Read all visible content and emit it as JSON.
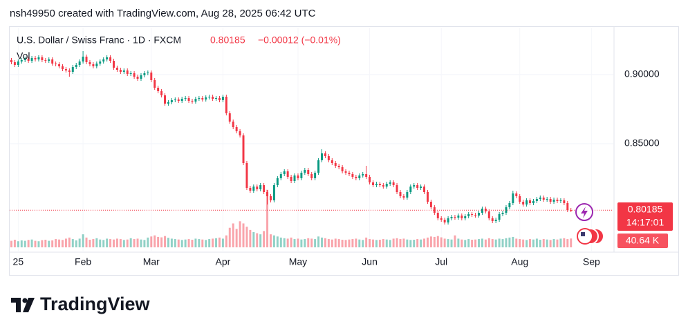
{
  "header": "nsh49950 created with TradingView.com, Aug 28, 2025 06:42 UTC",
  "chart_data": {
    "type": "candlestick",
    "title": "U.S. Dollar / Swiss Franc · 1D · FXCM",
    "change": "−0.00012 (−0.01%)",
    "volume_title": "Vol",
    "countdown": "14:17:01",
    "last_volume_label": "40.64 K",
    "up_color": "#089981",
    "down_color": "#f23645",
    "ylim": [
      0.7715,
      0.934
    ],
    "yticks": [
      {
        "value": 0.85,
        "label": "0.85000"
      },
      {
        "value": 0.9,
        "label": "0.90000"
      }
    ],
    "xlim": [
      -0.5,
      175
    ],
    "xticks": [
      {
        "value": 2,
        "label": "25"
      },
      {
        "value": 21,
        "label": "Feb"
      },
      {
        "value": 41,
        "label": "Mar"
      },
      {
        "value": 62,
        "label": "Apr"
      },
      {
        "value": 84,
        "label": "May"
      },
      {
        "value": 105,
        "label": "Jun"
      },
      {
        "value": 126,
        "label": "Jul"
      },
      {
        "value": 149,
        "label": "Aug"
      },
      {
        "value": 170,
        "label": "Sep"
      }
    ],
    "vlim": [
      0,
      350
    ],
    "grid": true,
    "open": [
      0.9105,
      0.909,
      0.907,
      0.9095,
      0.9105,
      0.9115,
      0.91,
      0.912,
      0.911,
      0.9125,
      0.9105,
      0.91,
      0.911,
      0.908,
      0.9075,
      0.906,
      0.904,
      0.903,
      0.902,
      0.9055,
      0.907,
      0.9095,
      0.913,
      0.909,
      0.9075,
      0.906,
      0.908,
      0.9095,
      0.911,
      0.9125,
      0.91,
      0.905,
      0.9035,
      0.902,
      0.903,
      0.9005,
      0.901,
      0.8985,
      0.897,
      0.8995,
      0.901,
      0.9015,
      0.896,
      0.8905,
      0.888,
      0.885,
      0.879,
      0.88,
      0.8815,
      0.882,
      0.881,
      0.8825,
      0.883,
      0.881,
      0.8805,
      0.8825,
      0.883,
      0.882,
      0.8835,
      0.884,
      0.8825,
      0.883,
      0.8815,
      0.884,
      0.872,
      0.866,
      0.862,
      0.859,
      0.856,
      0.836,
      0.818,
      0.816,
      0.819,
      0.817,
      0.82,
      0.815,
      0.812,
      0.809,
      0.82,
      0.825,
      0.828,
      0.83,
      0.826,
      0.823,
      0.827,
      0.825,
      0.829,
      0.831,
      0.828,
      0.825,
      0.829,
      0.838,
      0.843,
      0.841,
      0.838,
      0.836,
      0.834,
      0.833,
      0.83,
      0.829,
      0.828,
      0.826,
      0.825,
      0.827,
      0.828,
      0.826,
      0.822,
      0.82,
      0.821,
      0.82,
      0.819,
      0.821,
      0.822,
      0.82,
      0.815,
      0.812,
      0.811,
      0.815,
      0.819,
      0.82,
      0.818,
      0.819,
      0.815,
      0.808,
      0.804,
      0.8,
      0.796,
      0.795,
      0.793,
      0.796,
      0.797,
      0.7965,
      0.798,
      0.796,
      0.7975,
      0.799,
      0.7985,
      0.798,
      0.8,
      0.803,
      0.801,
      0.796,
      0.794,
      0.795,
      0.799,
      0.8,
      0.804,
      0.807,
      0.814,
      0.812,
      0.808,
      0.806,
      0.809,
      0.807,
      0.8085,
      0.81,
      0.811,
      0.8095,
      0.81,
      0.808,
      0.8095,
      0.8085,
      0.809,
      0.807,
      0.80197
    ],
    "high": [
      0.912,
      0.9105,
      0.911,
      0.912,
      0.913,
      0.913,
      0.9135,
      0.9135,
      0.914,
      0.914,
      0.912,
      0.9125,
      0.9125,
      0.9095,
      0.909,
      0.9075,
      0.9055,
      0.9045,
      0.907,
      0.9085,
      0.911,
      0.917,
      0.9145,
      0.9105,
      0.909,
      0.9095,
      0.911,
      0.9125,
      0.914,
      0.914,
      0.9115,
      0.9065,
      0.905,
      0.9045,
      0.9045,
      0.9025,
      0.9025,
      0.9,
      0.901,
      0.9025,
      0.903,
      0.903,
      0.8975,
      0.892,
      0.8895,
      0.8865,
      0.8815,
      0.883,
      0.8835,
      0.8835,
      0.884,
      0.8845,
      0.8845,
      0.8825,
      0.884,
      0.8845,
      0.8845,
      0.885,
      0.8855,
      0.8855,
      0.8845,
      0.8845,
      0.8855,
      0.8855,
      0.8735,
      0.8675,
      0.8635,
      0.8605,
      0.8575,
      0.8375,
      0.8195,
      0.8205,
      0.8205,
      0.8215,
      0.8215,
      0.8165,
      0.8135,
      0.8215,
      0.8265,
      0.8295,
      0.8315,
      0.8315,
      0.8275,
      0.8285,
      0.8285,
      0.8305,
      0.8325,
      0.8325,
      0.8295,
      0.8305,
      0.8395,
      0.846,
      0.8445,
      0.8425,
      0.8395,
      0.8375,
      0.8355,
      0.8345,
      0.8315,
      0.8305,
      0.8295,
      0.8275,
      0.8285,
      0.8295,
      0.834,
      0.8275,
      0.8235,
      0.8225,
      0.8225,
      0.8215,
      0.8225,
      0.8235,
      0.8235,
      0.8215,
      0.8165,
      0.8135,
      0.8165,
      0.8205,
      0.8215,
      0.8215,
      0.8205,
      0.8205,
      0.8165,
      0.8095,
      0.8055,
      0.8015,
      0.7975,
      0.7965,
      0.7975,
      0.7985,
      0.7985,
      0.7995,
      0.7995,
      0.799,
      0.8005,
      0.8005,
      0.8,
      0.8015,
      0.8045,
      0.8045,
      0.8025,
      0.7975,
      0.7965,
      0.8005,
      0.8015,
      0.8055,
      0.8085,
      0.816,
      0.8155,
      0.8135,
      0.8095,
      0.8105,
      0.8105,
      0.81,
      0.8115,
      0.8125,
      0.8125,
      0.8115,
      0.8115,
      0.811,
      0.811,
      0.8105,
      0.8105,
      0.8085,
      0.8035
    ],
    "low": [
      0.9075,
      0.9055,
      0.9055,
      0.908,
      0.909,
      0.9085,
      0.9085,
      0.9095,
      0.9095,
      0.909,
      0.9085,
      0.9085,
      0.9065,
      0.906,
      0.9045,
      0.9025,
      0.9015,
      0.8985,
      0.9005,
      0.904,
      0.9055,
      0.908,
      0.9075,
      0.906,
      0.9045,
      0.9045,
      0.9065,
      0.908,
      0.9095,
      0.9085,
      0.9035,
      0.902,
      0.9005,
      0.9005,
      0.899,
      0.899,
      0.897,
      0.8955,
      0.8955,
      0.898,
      0.8995,
      0.8945,
      0.889,
      0.8865,
      0.8835,
      0.8775,
      0.8775,
      0.8785,
      0.88,
      0.8795,
      0.8795,
      0.881,
      0.8795,
      0.879,
      0.879,
      0.881,
      0.8805,
      0.8805,
      0.882,
      0.881,
      0.881,
      0.88,
      0.88,
      0.8705,
      0.8645,
      0.8605,
      0.8575,
      0.8545,
      0.8345,
      0.8165,
      0.8145,
      0.8145,
      0.8155,
      0.8155,
      0.8135,
      0.806,
      0.8075,
      0.8075,
      0.8185,
      0.8235,
      0.8265,
      0.8245,
      0.8215,
      0.8215,
      0.8235,
      0.8235,
      0.8275,
      0.8265,
      0.8235,
      0.8235,
      0.8275,
      0.8365,
      0.8395,
      0.8365,
      0.8345,
      0.8325,
      0.8315,
      0.8285,
      0.8275,
      0.8265,
      0.8245,
      0.8235,
      0.8235,
      0.8255,
      0.8245,
      0.8205,
      0.8185,
      0.8185,
      0.8185,
      0.8175,
      0.8175,
      0.8195,
      0.8185,
      0.8135,
      0.8105,
      0.8095,
      0.8095,
      0.8135,
      0.8175,
      0.8165,
      0.8165,
      0.8135,
      0.8065,
      0.8025,
      0.7985,
      0.7945,
      0.7935,
      0.7915,
      0.7915,
      0.7945,
      0.795,
      0.795,
      0.7945,
      0.7945,
      0.796,
      0.797,
      0.7965,
      0.7965,
      0.7985,
      0.7995,
      0.7945,
      0.7925,
      0.7925,
      0.7935,
      0.7975,
      0.7985,
      0.8025,
      0.8055,
      0.8105,
      0.8065,
      0.8045,
      0.8045,
      0.8055,
      0.8055,
      0.807,
      0.8085,
      0.808,
      0.808,
      0.8065,
      0.8065,
      0.807,
      0.807,
      0.8055,
      0.8005,
      0.8005
    ],
    "close": [
      0.909,
      0.907,
      0.9095,
      0.9105,
      0.9115,
      0.91,
      0.912,
      0.911,
      0.9125,
      0.9105,
      0.91,
      0.911,
      0.908,
      0.9075,
      0.906,
      0.904,
      0.903,
      0.902,
      0.9055,
      0.907,
      0.9095,
      0.913,
      0.909,
      0.9075,
      0.906,
      0.908,
      0.9095,
      0.911,
      0.9125,
      0.91,
      0.905,
      0.9035,
      0.902,
      0.903,
      0.9005,
      0.901,
      0.8985,
      0.897,
      0.8995,
      0.901,
      0.9015,
      0.896,
      0.8905,
      0.888,
      0.885,
      0.879,
      0.88,
      0.8815,
      0.882,
      0.881,
      0.8825,
      0.883,
      0.881,
      0.8805,
      0.8825,
      0.883,
      0.882,
      0.8835,
      0.884,
      0.8825,
      0.883,
      0.8815,
      0.884,
      0.872,
      0.866,
      0.862,
      0.859,
      0.856,
      0.836,
      0.818,
      0.816,
      0.819,
      0.817,
      0.82,
      0.815,
      0.812,
      0.809,
      0.82,
      0.825,
      0.828,
      0.83,
      0.826,
      0.823,
      0.827,
      0.825,
      0.829,
      0.831,
      0.828,
      0.825,
      0.829,
      0.838,
      0.843,
      0.841,
      0.838,
      0.836,
      0.834,
      0.833,
      0.83,
      0.829,
      0.828,
      0.826,
      0.825,
      0.827,
      0.828,
      0.826,
      0.822,
      0.82,
      0.821,
      0.82,
      0.819,
      0.821,
      0.822,
      0.82,
      0.815,
      0.812,
      0.811,
      0.815,
      0.819,
      0.82,
      0.818,
      0.819,
      0.815,
      0.808,
      0.804,
      0.8,
      0.796,
      0.795,
      0.793,
      0.796,
      0.797,
      0.7965,
      0.798,
      0.796,
      0.7975,
      0.799,
      0.7985,
      0.798,
      0.8,
      0.803,
      0.801,
      0.796,
      0.794,
      0.795,
      0.799,
      0.8,
      0.804,
      0.807,
      0.814,
      0.812,
      0.808,
      0.806,
      0.809,
      0.807,
      0.8085,
      0.81,
      0.811,
      0.8095,
      0.81,
      0.808,
      0.8095,
      0.8085,
      0.809,
      0.807,
      0.80197,
      0.80185
    ],
    "volume": [
      30,
      35,
      28,
      32,
      30,
      34,
      36,
      30,
      28,
      33,
      35,
      30,
      32,
      38,
      36,
      34,
      40,
      45,
      38,
      32,
      40,
      60,
      45,
      35,
      38,
      42,
      36,
      34,
      40,
      38,
      36,
      40,
      38,
      34,
      36,
      42,
      38,
      40,
      36,
      34,
      45,
      50,
      55,
      48,
      46,
      52,
      44,
      40,
      38,
      36,
      34,
      36,
      38,
      35,
      40,
      38,
      36,
      34,
      38,
      40,
      42,
      45,
      40,
      55,
      90,
      110,
      85,
      120,
      110,
      95,
      80,
      70,
      65,
      60,
      75,
      265,
      60,
      55,
      50,
      45,
      42,
      40,
      45,
      38,
      40,
      36,
      38,
      42,
      40,
      38,
      50,
      45,
      42,
      38,
      36,
      40,
      38,
      35,
      34,
      36,
      38,
      40,
      36,
      34,
      45,
      38,
      36,
      34,
      35,
      38,
      36,
      34,
      40,
      42,
      38,
      40,
      36,
      34,
      35,
      38,
      36,
      40,
      45,
      50,
      48,
      52,
      46,
      40,
      38,
      36,
      55,
      40,
      36,
      34,
      38,
      35,
      36,
      38,
      40,
      36,
      42,
      38,
      36,
      40,
      38,
      42,
      45,
      48,
      40,
      38,
      36,
      34,
      38,
      36,
      40,
      35,
      38,
      36,
      34,
      38,
      36,
      40,
      42,
      38,
      40.64
    ]
  },
  "footer": {
    "brand": "TradingView"
  }
}
